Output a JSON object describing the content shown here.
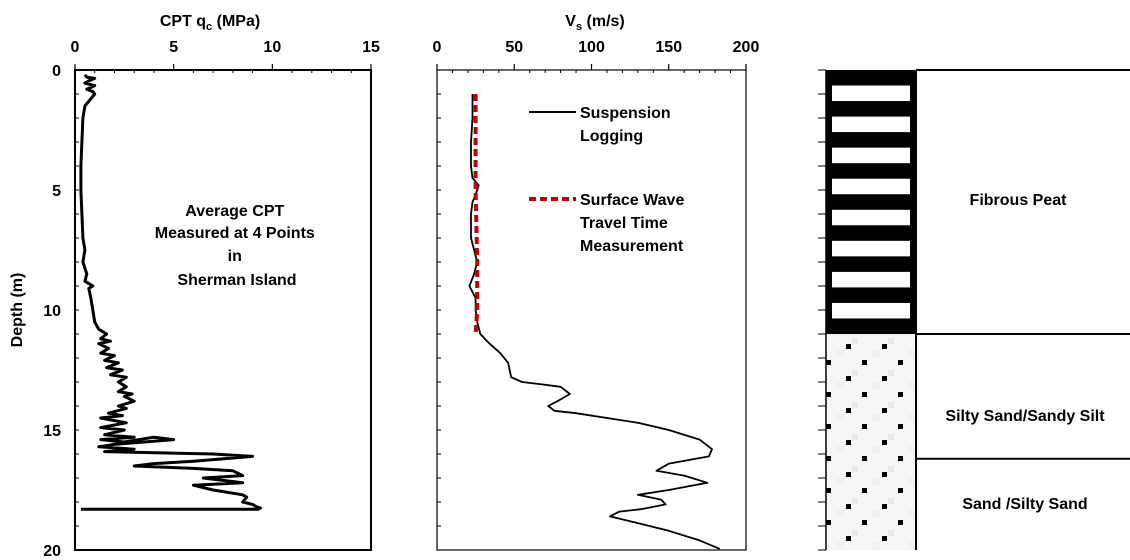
{
  "chart_data": [
    {
      "type": "line",
      "title": "CPT q",
      "title_sub": "c",
      "title_unit": " (MPa)",
      "ylabel": "Depth (m)",
      "xlim": [
        0,
        15
      ],
      "ylim": [
        0,
        20
      ],
      "y_inverted": true,
      "x_axis_position": "top",
      "x_ticks": [
        0,
        5,
        10,
        15
      ],
      "y_ticks": [
        0,
        5,
        10,
        15,
        20
      ],
      "grid": false,
      "annotation": [
        "Average CPT",
        "Measured at 4 Points",
        "in",
        "Sherman Island"
      ],
      "series": [
        {
          "color": "#000000",
          "points": [
            [
              0.5,
              0.2
            ],
            [
              0.6,
              0.3
            ],
            [
              1.0,
              0.35
            ],
            [
              0.7,
              0.45
            ],
            [
              0.5,
              0.55
            ],
            [
              1.0,
              0.65
            ],
            [
              0.6,
              0.8
            ],
            [
              0.9,
              0.9
            ],
            [
              1.0,
              1.0
            ],
            [
              0.8,
              1.2
            ],
            [
              0.5,
              1.5
            ],
            [
              0.4,
              2.0
            ],
            [
              0.35,
              3.0
            ],
            [
              0.3,
              4.0
            ],
            [
              0.3,
              5.0
            ],
            [
              0.35,
              6.0
            ],
            [
              0.4,
              7.0
            ],
            [
              0.5,
              7.5
            ],
            [
              0.4,
              8.0
            ],
            [
              0.6,
              8.5
            ],
            [
              0.5,
              8.8
            ],
            [
              0.9,
              9.0
            ],
            [
              0.7,
              9.1
            ],
            [
              0.8,
              9.5
            ],
            [
              0.9,
              10.0
            ],
            [
              1.0,
              10.5
            ],
            [
              1.2,
              10.8
            ],
            [
              1.6,
              11.0
            ],
            [
              1.3,
              11.2
            ],
            [
              1.8,
              11.3
            ],
            [
              1.2,
              11.4
            ],
            [
              1.7,
              11.6
            ],
            [
              1.3,
              11.8
            ],
            [
              2.0,
              11.9
            ],
            [
              1.5,
              12.1
            ],
            [
              2.2,
              12.2
            ],
            [
              1.6,
              12.4
            ],
            [
              2.4,
              12.5
            ],
            [
              1.8,
              12.7
            ],
            [
              2.6,
              12.8
            ],
            [
              2.2,
              13.0
            ],
            [
              2.6,
              13.2
            ],
            [
              2.2,
              13.4
            ],
            [
              2.9,
              13.5
            ],
            [
              2.5,
              13.6
            ],
            [
              3.0,
              13.8
            ],
            [
              2.2,
              14.0
            ],
            [
              2.6,
              14.1
            ],
            [
              1.7,
              14.3
            ],
            [
              2.4,
              14.4
            ],
            [
              1.3,
              14.5
            ],
            [
              2.6,
              14.7
            ],
            [
              1.3,
              14.9
            ],
            [
              2.5,
              15.0
            ],
            [
              1.5,
              15.2
            ],
            [
              3.0,
              15.3
            ],
            [
              1.3,
              15.4
            ],
            [
              2.5,
              15.5
            ],
            [
              4.0,
              15.3
            ],
            [
              5.0,
              15.4
            ],
            [
              2.0,
              15.6
            ],
            [
              1.2,
              15.7
            ],
            [
              3.0,
              15.8
            ],
            [
              1.5,
              15.9
            ],
            [
              7.0,
              16.0
            ],
            [
              9.0,
              16.1
            ],
            [
              6.0,
              16.3
            ],
            [
              4.0,
              16.4
            ],
            [
              3.0,
              16.5
            ],
            [
              6.0,
              16.6
            ],
            [
              8.0,
              16.7
            ],
            [
              8.5,
              16.9
            ],
            [
              6.5,
              17.0
            ],
            [
              8.5,
              17.2
            ],
            [
              6.0,
              17.3
            ],
            [
              7.0,
              17.5
            ],
            [
              8.5,
              17.7
            ],
            [
              8.7,
              17.8
            ],
            [
              8.5,
              18.0
            ],
            [
              9.0,
              18.1
            ],
            [
              9.2,
              18.2
            ],
            [
              9.4,
              18.25
            ],
            [
              9.3,
              18.3
            ],
            [
              0.3,
              18.3
            ]
          ]
        }
      ]
    },
    {
      "type": "line",
      "title": "V",
      "title_sub": "s",
      "title_unit": " (m/s)",
      "xlim": [
        0,
        200
      ],
      "ylim": [
        0,
        20
      ],
      "y_inverted": true,
      "x_axis_position": "top",
      "x_ticks": [
        0,
        50,
        100,
        150,
        200
      ],
      "grid": false,
      "legend_position": "top-right",
      "series": [
        {
          "name": "Suspension Logging",
          "color": "#000000",
          "style": "solid",
          "points": [
            [
              23,
              1.0
            ],
            [
              23,
              2.0
            ],
            [
              22,
              3.0
            ],
            [
              22,
              4.0
            ],
            [
              23,
              4.5
            ],
            [
              27,
              4.8
            ],
            [
              25,
              5.2
            ],
            [
              23,
              5.5
            ],
            [
              22,
              6.0
            ],
            [
              22,
              7.0
            ],
            [
              24,
              7.5
            ],
            [
              26,
              8.0
            ],
            [
              24,
              8.5
            ],
            [
              21,
              9.0
            ],
            [
              25,
              9.5
            ],
            [
              25,
              10.0
            ],
            [
              26,
              10.5
            ],
            [
              28,
              11.0
            ],
            [
              34,
              11.4
            ],
            [
              41,
              11.8
            ],
            [
              46,
              12.2
            ],
            [
              48,
              12.8
            ],
            [
              55,
              13.0
            ],
            [
              68,
              13.1
            ],
            [
              80,
              13.2
            ],
            [
              86,
              13.5
            ],
            [
              78,
              13.8
            ],
            [
              72,
              14.0
            ],
            [
              76,
              14.2
            ],
            [
              90,
              14.3
            ],
            [
              110,
              14.5
            ],
            [
              130,
              14.7
            ],
            [
              150,
              15.0
            ],
            [
              170,
              15.4
            ],
            [
              178,
              15.8
            ],
            [
              176,
              16.1
            ],
            [
              150,
              16.4
            ],
            [
              142,
              16.7
            ],
            [
              160,
              16.9
            ],
            [
              175,
              17.2
            ],
            [
              150,
              17.5
            ],
            [
              130,
              17.7
            ],
            [
              145,
              17.9
            ],
            [
              148,
              18.1
            ],
            [
              132,
              18.3
            ],
            [
              118,
              18.4
            ],
            [
              112,
              18.6
            ],
            [
              125,
              18.8
            ],
            [
              150,
              19.2
            ],
            [
              170,
              19.6
            ],
            [
              183,
              19.95
            ]
          ]
        },
        {
          "name": "Surface Wave Travel Time Measurement",
          "color": "#c00000",
          "style": "dashed",
          "points": [
            [
              25,
              1.0
            ],
            [
              25,
              5.0
            ],
            [
              26,
              8.0
            ],
            [
              26,
              10.0
            ],
            [
              25,
              11.0
            ]
          ]
        }
      ]
    }
  ],
  "soil_column": {
    "layers": [
      {
        "name": "Fibrous Peat",
        "top": 0,
        "bottom": 11,
        "pattern": "black-white-bands"
      },
      {
        "name": "Silty Sand/Sandy Silt",
        "top": 11,
        "bottom": 16.2,
        "pattern": "dotted"
      },
      {
        "name": "Sand /Silty Sand",
        "top": 16.2,
        "bottom": 20,
        "pattern": "dotted"
      }
    ],
    "peat_stripes": 8
  }
}
